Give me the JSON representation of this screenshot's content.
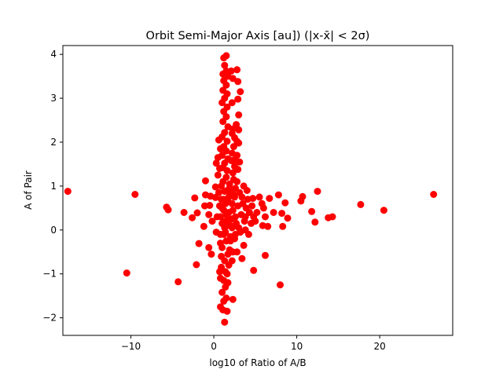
{
  "chart_data": {
    "type": "scatter",
    "title": "Orbit Semi-Major Axis [au]) (|x-x̄| < 2σ)",
    "xlabel": "log10 of Ratio of A/B",
    "ylabel": "A of Pair",
    "xlim": [
      -18.2,
      28.8
    ],
    "ylim": [
      -2.4,
      4.2
    ],
    "xticks": [
      -10,
      0,
      10,
      20
    ],
    "yticks": [
      -2,
      -1,
      0,
      1,
      2,
      3,
      4
    ],
    "xtick_labels": [
      "−10",
      "0",
      "10",
      "20"
    ],
    "ytick_labels": [
      "−2",
      "−1",
      "0",
      "1",
      "2",
      "3",
      "4"
    ],
    "grid": false,
    "legend": "none",
    "marker_color": "#ff0000",
    "series": [
      {
        "points": [
          [
            -17.6,
            0.88
          ],
          [
            -9.5,
            0.81
          ],
          [
            -10.5,
            -0.98
          ],
          [
            -4.3,
            -1.18
          ],
          [
            -5.7,
            0.52
          ],
          [
            -5.5,
            0.46
          ],
          [
            -3.6,
            0.4
          ],
          [
            -2.3,
            0.73
          ],
          [
            -2.0,
            0.39
          ],
          [
            -2.6,
            0.28
          ],
          [
            -2.1,
            -0.79
          ],
          [
            -1.8,
            -0.31
          ],
          [
            -1.2,
            0.08
          ],
          [
            -1.1,
            0.55
          ],
          [
            -1.0,
            0.8
          ],
          [
            -1.0,
            1.12
          ],
          [
            -0.6,
            0.35
          ],
          [
            -0.4,
            0.77
          ],
          [
            -0.2,
            0.2
          ],
          [
            -0.5,
            0.56
          ],
          [
            0.2,
            0.74
          ],
          [
            0.3,
            -0.05
          ],
          [
            0.4,
            0.3
          ],
          [
            -0.6,
            -0.4
          ],
          [
            0.2,
            0.98
          ],
          [
            0.5,
            1.25
          ],
          [
            -0.3,
            -0.55
          ],
          [
            1.2,
            3.92
          ],
          [
            1.5,
            3.97
          ],
          [
            1.3,
            3.75
          ],
          [
            1.5,
            3.62
          ],
          [
            1.1,
            3.55
          ],
          [
            1.7,
            3.5
          ],
          [
            1.2,
            3.4
          ],
          [
            1.5,
            3.3
          ],
          [
            1.1,
            3.18
          ],
          [
            1.6,
            3.1
          ],
          [
            1.3,
            3.0
          ],
          [
            1.0,
            2.9
          ],
          [
            1.6,
            2.8
          ],
          [
            1.2,
            2.7
          ],
          [
            1.5,
            2.58
          ],
          [
            1.1,
            2.47
          ],
          [
            1.7,
            2.35
          ],
          [
            1.3,
            2.22
          ],
          [
            1.0,
            2.12
          ],
          [
            1.6,
            2.02
          ],
          [
            1.2,
            1.9
          ],
          [
            1.5,
            1.8
          ],
          [
            1.0,
            1.7
          ],
          [
            1.7,
            1.62
          ],
          [
            1.3,
            1.52
          ],
          [
            1.1,
            1.42
          ],
          [
            1.6,
            1.35
          ],
          [
            2.1,
            3.62
          ],
          [
            2.3,
            3.45
          ],
          [
            2.8,
            3.65
          ],
          [
            2.9,
            3.38
          ],
          [
            3.2,
            3.15
          ],
          [
            2.9,
            2.98
          ],
          [
            2.2,
            2.9
          ],
          [
            3.0,
            2.62
          ],
          [
            2.7,
            2.4
          ],
          [
            2.3,
            2.3
          ],
          [
            3.0,
            2.28
          ],
          [
            2.2,
            2.2
          ],
          [
            2.5,
            2.1
          ],
          [
            2.8,
            2.02
          ],
          [
            3.0,
            1.98
          ],
          [
            2.4,
            1.9
          ],
          [
            2.2,
            1.75
          ],
          [
            2.8,
            1.7
          ],
          [
            2.5,
            1.6
          ],
          [
            2.1,
            1.58
          ],
          [
            3.1,
            1.55
          ],
          [
            2.5,
            1.45
          ],
          [
            2.9,
            1.38
          ],
          [
            2.3,
            1.3
          ],
          [
            0.7,
            1.4
          ],
          [
            0.5,
            1.65
          ],
          [
            0.3,
            1.52
          ],
          [
            0.8,
            1.85
          ],
          [
            0.6,
            2.05
          ],
          [
            0.8,
            0.3
          ],
          [
            1.0,
            0.5
          ],
          [
            1.2,
            0.7
          ],
          [
            1.4,
            0.2
          ],
          [
            1.6,
            0.9
          ],
          [
            1.8,
            0.4
          ],
          [
            2.0,
            0.1
          ],
          [
            2.2,
            0.6
          ],
          [
            2.4,
            0.8
          ],
          [
            2.6,
            0.3
          ],
          [
            0.9,
            1.0
          ],
          [
            1.1,
            1.1
          ],
          [
            1.3,
            0.05
          ],
          [
            1.5,
            0.35
          ],
          [
            1.7,
            0.65
          ],
          [
            1.9,
            0.95
          ],
          [
            2.1,
            0.25
          ],
          [
            2.3,
            0.45
          ],
          [
            2.5,
            0.75
          ],
          [
            2.7,
            0.15
          ],
          [
            2.9,
            0.55
          ],
          [
            3.1,
            0.85
          ],
          [
            3.3,
            0.35
          ],
          [
            3.5,
            0.6
          ],
          [
            3.7,
            0.2
          ],
          [
            3.9,
            0.5
          ],
          [
            4.1,
            0.7
          ],
          [
            4.3,
            0.4
          ],
          [
            1.0,
            0.15
          ],
          [
            1.2,
            0.45
          ],
          [
            1.4,
            0.6
          ],
          [
            1.6,
            0.1
          ],
          [
            1.8,
            0.75
          ],
          [
            2.0,
            0.85
          ],
          [
            2.2,
            0.05
          ],
          [
            0.7,
            0.55
          ],
          [
            0.6,
            0.85
          ],
          [
            0.9,
            0.7
          ],
          [
            1.3,
            0.88
          ],
          [
            1.7,
            0.25
          ],
          [
            2.6,
            0.95
          ],
          [
            3.0,
            0.05
          ],
          [
            3.4,
            0.75
          ],
          [
            3.8,
            0.3
          ],
          [
            4.5,
            0.15
          ],
          [
            4.6,
            0.55
          ],
          [
            4.0,
            0.9
          ],
          [
            3.6,
            1.0
          ],
          [
            2.8,
            1.1
          ],
          [
            1.5,
            1.2
          ],
          [
            1.9,
            1.05
          ],
          [
            2.4,
            1.15
          ],
          [
            0.8,
            -0.1
          ],
          [
            1.4,
            -0.05
          ],
          [
            2.0,
            -0.15
          ],
          [
            2.6,
            -0.1
          ],
          [
            3.2,
            -0.05
          ],
          [
            3.8,
            0.0
          ],
          [
            4.2,
            -0.1
          ],
          [
            4.7,
            0.72
          ],
          [
            4.8,
            0.3
          ],
          [
            5.5,
            0.75
          ],
          [
            5.8,
            0.6
          ],
          [
            5.2,
            0.4
          ],
          [
            6.2,
            0.3
          ],
          [
            6.7,
            0.72
          ],
          [
            7.2,
            0.4
          ],
          [
            7.8,
            0.8
          ],
          [
            8.2,
            0.38
          ],
          [
            8.6,
            0.62
          ],
          [
            8.3,
            0.08
          ],
          [
            8.9,
            0.27
          ],
          [
            10.5,
            0.66
          ],
          [
            10.7,
            0.76
          ],
          [
            11.8,
            0.42
          ],
          [
            12.5,
            0.88
          ],
          [
            12.2,
            0.18
          ],
          [
            13.8,
            0.28
          ],
          [
            14.3,
            0.3
          ],
          [
            17.7,
            0.58
          ],
          [
            20.5,
            0.45
          ],
          [
            26.5,
            0.81
          ],
          [
            5.9,
            0.1
          ],
          [
            6.0,
            0.5
          ],
          [
            5.0,
            0.2
          ],
          [
            6.5,
            0.08
          ],
          [
            1.2,
            -0.1
          ],
          [
            1.5,
            -0.25
          ],
          [
            1.0,
            -0.4
          ],
          [
            1.7,
            -0.55
          ],
          [
            1.3,
            -0.7
          ],
          [
            0.9,
            -0.85
          ],
          [
            1.6,
            -1.0
          ],
          [
            1.2,
            -1.15
          ],
          [
            1.4,
            -1.3
          ],
          [
            1.0,
            -1.42
          ],
          [
            1.5,
            -1.55
          ],
          [
            1.2,
            -1.62
          ],
          [
            0.8,
            -1.75
          ],
          [
            1.1,
            -1.82
          ],
          [
            1.6,
            -1.85
          ],
          [
            1.3,
            -2.1
          ],
          [
            2.3,
            -1.58
          ],
          [
            0.8,
            -0.3
          ],
          [
            0.9,
            -0.6
          ],
          [
            0.7,
            -0.95
          ],
          [
            1.8,
            -0.8
          ],
          [
            1.9,
            -0.45
          ],
          [
            2.0,
            -0.25
          ],
          [
            2.3,
            -0.5
          ],
          [
            2.8,
            -0.5
          ],
          [
            3.4,
            -0.65
          ],
          [
            3.6,
            -0.35
          ],
          [
            4.8,
            -0.92
          ],
          [
            6.2,
            -0.58
          ],
          [
            8.0,
            -1.25
          ],
          [
            2.5,
            -0.2
          ],
          [
            2.2,
            -0.7
          ],
          [
            1.7,
            -1.2
          ],
          [
            1.4,
            -0.95
          ],
          [
            0.8,
            -1.1
          ]
        ]
      }
    ]
  }
}
